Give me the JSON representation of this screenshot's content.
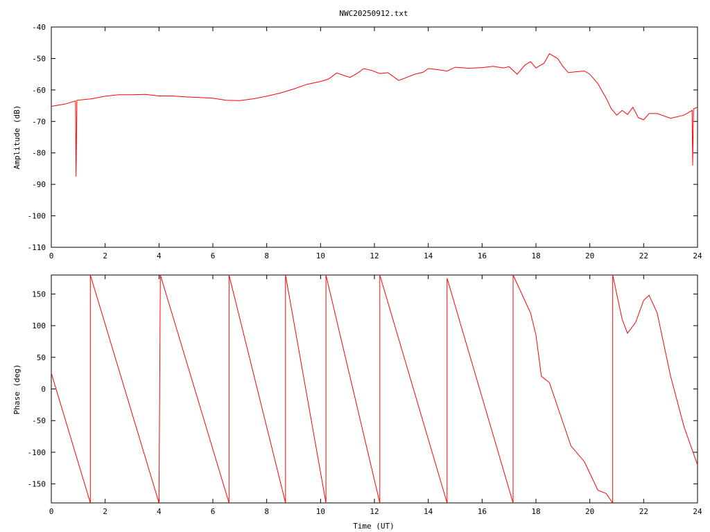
{
  "title": "NWC20250912.txt",
  "colors": {
    "trace": "#ff0000",
    "frame": "#000000",
    "background": "#ffffff"
  },
  "chart_data": [
    {
      "type": "line",
      "title": "NWC20250912.txt",
      "xlabel": "",
      "ylabel": "Amplitude (dB)",
      "xlim": [
        0,
        24
      ],
      "ylim": [
        -110,
        -40
      ],
      "x_ticks": [
        "0",
        "2",
        "4",
        "6",
        "8",
        "10",
        "12",
        "14",
        "16",
        "18",
        "20",
        "22",
        "24"
      ],
      "y_ticks": [
        "-110",
        "-100",
        "-90",
        "-80",
        "-70",
        "-60",
        "-50",
        "-40"
      ],
      "grid": false,
      "series": [
        {
          "points": [
            [
              0,
              -65.2
            ],
            [
              0.5,
              -64.5
            ],
            [
              0.9,
              -63.5
            ],
            [
              0.92,
              -87.5
            ],
            [
              0.95,
              -63.3
            ],
            [
              1.5,
              -62.8
            ],
            [
              2.0,
              -62.0
            ],
            [
              2.5,
              -61.5
            ],
            [
              3.0,
              -61.5
            ],
            [
              3.5,
              -61.4
            ],
            [
              4.0,
              -61.9
            ],
            [
              4.5,
              -61.9
            ],
            [
              5.0,
              -62.2
            ],
            [
              5.5,
              -62.4
            ],
            [
              6.0,
              -62.6
            ],
            [
              6.5,
              -63.3
            ],
            [
              7.0,
              -63.4
            ],
            [
              7.5,
              -62.8
            ],
            [
              8.0,
              -62.0
            ],
            [
              8.5,
              -61.0
            ],
            [
              9.0,
              -59.7
            ],
            [
              9.5,
              -58.2
            ],
            [
              10.0,
              -57.3
            ],
            [
              10.3,
              -56.5
            ],
            [
              10.6,
              -54.6
            ],
            [
              10.9,
              -55.5
            ],
            [
              11.1,
              -56.0
            ],
            [
              11.4,
              -54.5
            ],
            [
              11.6,
              -53.2
            ],
            [
              11.9,
              -53.8
            ],
            [
              12.2,
              -54.8
            ],
            [
              12.5,
              -54.5
            ],
            [
              12.9,
              -57.0
            ],
            [
              13.2,
              -56.0
            ],
            [
              13.5,
              -55.0
            ],
            [
              13.8,
              -54.4
            ],
            [
              14.0,
              -53.2
            ],
            [
              14.3,
              -53.5
            ],
            [
              14.7,
              -54.0
            ],
            [
              15.0,
              -52.8
            ],
            [
              15.5,
              -53.1
            ],
            [
              16.0,
              -52.9
            ],
            [
              16.4,
              -52.5
            ],
            [
              16.8,
              -53.0
            ],
            [
              17.0,
              -52.6
            ],
            [
              17.3,
              -55.0
            ],
            [
              17.6,
              -52.0
            ],
            [
              17.8,
              -51.0
            ],
            [
              18.0,
              -53.0
            ],
            [
              18.3,
              -51.5
            ],
            [
              18.5,
              -48.5
            ],
            [
              18.8,
              -50.0
            ],
            [
              19.0,
              -52.5
            ],
            [
              19.2,
              -54.5
            ],
            [
              19.5,
              -54.2
            ],
            [
              19.8,
              -54.0
            ],
            [
              20.0,
              -55.0
            ],
            [
              20.3,
              -58.0
            ],
            [
              20.6,
              -62.5
            ],
            [
              20.8,
              -66.0
            ],
            [
              21.0,
              -68.0
            ],
            [
              21.2,
              -66.5
            ],
            [
              21.4,
              -67.8
            ],
            [
              21.6,
              -65.5
            ],
            [
              21.8,
              -68.8
            ],
            [
              22.0,
              -69.5
            ],
            [
              22.2,
              -67.5
            ],
            [
              22.5,
              -67.5
            ],
            [
              23.0,
              -69.0
            ],
            [
              23.5,
              -68.0
            ],
            [
              23.8,
              -66.5
            ],
            [
              23.82,
              -84.0
            ],
            [
              23.85,
              -66.0
            ],
            [
              24.0,
              -65.5
            ]
          ]
        }
      ]
    },
    {
      "type": "line",
      "title": "",
      "xlabel": "Time (UT)",
      "ylabel": "Phase (deg)",
      "xlim": [
        0,
        24
      ],
      "ylim": [
        -180,
        180
      ],
      "x_ticks": [
        "0",
        "2",
        "4",
        "6",
        "8",
        "10",
        "12",
        "14",
        "16",
        "18",
        "20",
        "22",
        "24"
      ],
      "y_ticks": [
        "-150",
        "-100",
        "-50",
        "0",
        "50",
        "100",
        "150"
      ],
      "grid": false,
      "series": [
        {
          "points": [
            [
              0,
              25
            ],
            [
              1.45,
              -180
            ],
            [
              1.45,
              180
            ],
            [
              4.0,
              -180
            ],
            [
              4.05,
              180
            ],
            [
              6.6,
              -180
            ],
            [
              6.6,
              180
            ],
            [
              8.7,
              -180
            ],
            [
              8.7,
              180
            ],
            [
              10.2,
              -180
            ],
            [
              10.2,
              180
            ],
            [
              12.2,
              -180
            ],
            [
              12.2,
              180
            ],
            [
              14.7,
              -180
            ],
            [
              14.7,
              175
            ],
            [
              17.15,
              -180
            ],
            [
              17.15,
              180
            ],
            [
              17.8,
              120
            ],
            [
              18.0,
              85
            ],
            [
              18.2,
              20
            ],
            [
              18.5,
              10
            ],
            [
              18.9,
              -40
            ],
            [
              19.3,
              -90
            ],
            [
              19.8,
              -115
            ],
            [
              20.3,
              -160
            ],
            [
              20.6,
              -165
            ],
            [
              20.85,
              -180
            ],
            [
              20.85,
              180
            ],
            [
              21.2,
              110
            ],
            [
              21.4,
              88
            ],
            [
              21.7,
              105
            ],
            [
              22.0,
              140
            ],
            [
              22.2,
              148
            ],
            [
              22.5,
              120
            ],
            [
              23.0,
              20
            ],
            [
              23.5,
              -60
            ],
            [
              24.0,
              -120
            ]
          ]
        }
      ]
    }
  ]
}
